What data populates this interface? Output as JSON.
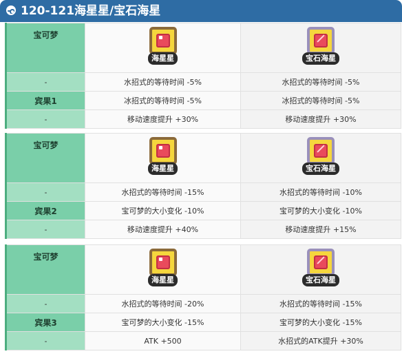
{
  "title": "120-121海星星/宝石海星",
  "pokemon": {
    "name1": "海星星",
    "name2": "宝石海星",
    "icon1": "staryu-icon",
    "icon2": "starmie-icon"
  },
  "blocks": [
    {
      "label": "宝可梦",
      "fruit": "宾果1",
      "rows": [
        {
          "label": "-",
          "v1": "水招式的等待时间 -5%",
          "v2": "水招式的等待时间 -5%"
        },
        {
          "label": "宾果1",
          "v1": "冰招式的等待时间 -5%",
          "v2": "冰招式的等待时间 -5%"
        },
        {
          "label": "-",
          "v1": "移动速度提升 +30%",
          "v2": "移动速度提升 +30%"
        }
      ]
    },
    {
      "label": "宝可梦",
      "rows": [
        {
          "label": "-",
          "v1": "水招式的等待时间 -15%",
          "v2": "水招式的等待时间 -10%"
        },
        {
          "label": "宾果2",
          "v1": "宝可梦的大小变化 -10%",
          "v2": "宝可梦的大小变化 -10%"
        },
        {
          "label": "-",
          "v1": "移动速度提升 +40%",
          "v2": "移动速度提升 +15%"
        }
      ]
    },
    {
      "label": "宝可梦",
      "rows": [
        {
          "label": "-",
          "v1": "水招式的等待时间 -20%",
          "v2": "水招式的等待时间 -15%"
        },
        {
          "label": "宾果3",
          "v1": "宝可梦的大小变化 -15%",
          "v2": "宝可梦的大小变化 -15%"
        },
        {
          "label": "-",
          "v1": "ATK +500",
          "v2": "水招式的ATK提升 +30%"
        }
      ]
    }
  ]
}
